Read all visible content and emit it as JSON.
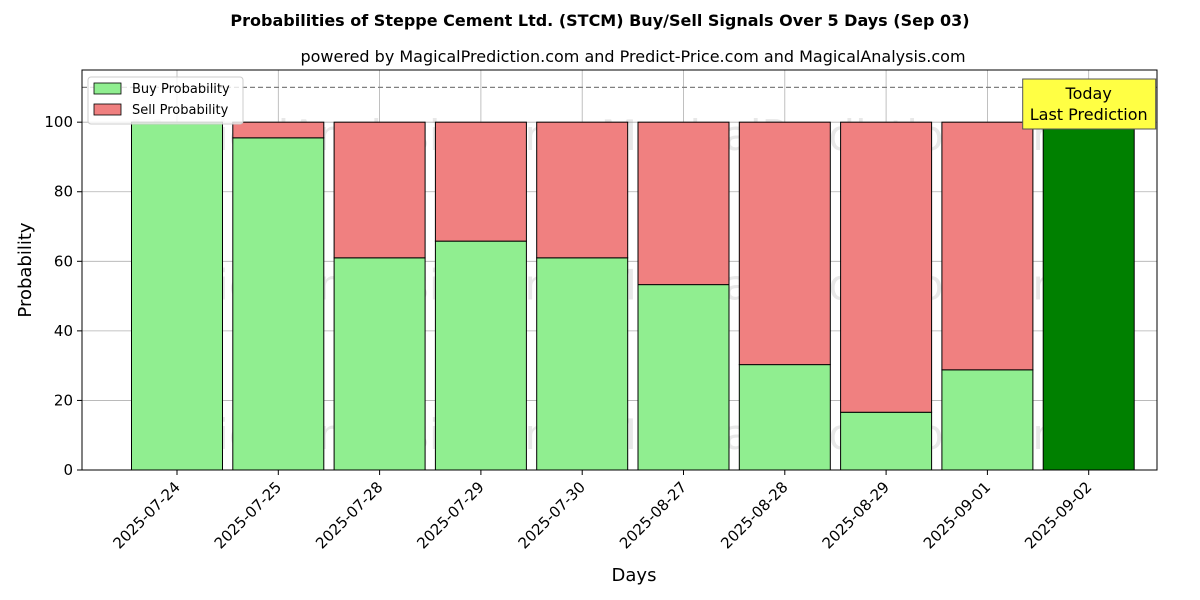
{
  "chart_data": {
    "type": "bar",
    "stacked": true,
    "title": "Probabilities of Steppe Cement Ltd. (STCM) Buy/Sell Signals Over 5 Days (Sep 03)",
    "subtitle": "powered by MagicalPrediction.com and Predict-Price.com and MagicalAnalysis.com",
    "xlabel": "Days",
    "ylabel": "Probability",
    "ylim": [
      0,
      115
    ],
    "yticks": [
      0,
      20,
      40,
      60,
      80,
      100
    ],
    "reference_line": 110,
    "grid": true,
    "legend_position": "top-left",
    "categories": [
      "2025-07-24",
      "2025-07-25",
      "2025-07-28",
      "2025-07-29",
      "2025-07-30",
      "2025-08-27",
      "2025-08-28",
      "2025-08-29",
      "2025-09-01",
      "2025-09-02"
    ],
    "series": [
      {
        "name": "Buy Probability",
        "color": "#90ee90",
        "values": [
          100,
          95.5,
          61,
          65.8,
          61,
          53.3,
          30.3,
          16.6,
          28.8,
          100
        ]
      },
      {
        "name": "Sell Probability",
        "color": "#f08080",
        "values": [
          0,
          4.5,
          39,
          34.2,
          39,
          46.7,
          69.7,
          83.4,
          71.2,
          0
        ]
      }
    ],
    "highlight": {
      "index": 9,
      "color": "#008000",
      "annotation": [
        "Today",
        "Last Prediction"
      ],
      "annotation_bg": "#ffff44"
    },
    "watermarks": [
      "MagicalAnalysis.com",
      "MagicalPrediction.com"
    ]
  }
}
